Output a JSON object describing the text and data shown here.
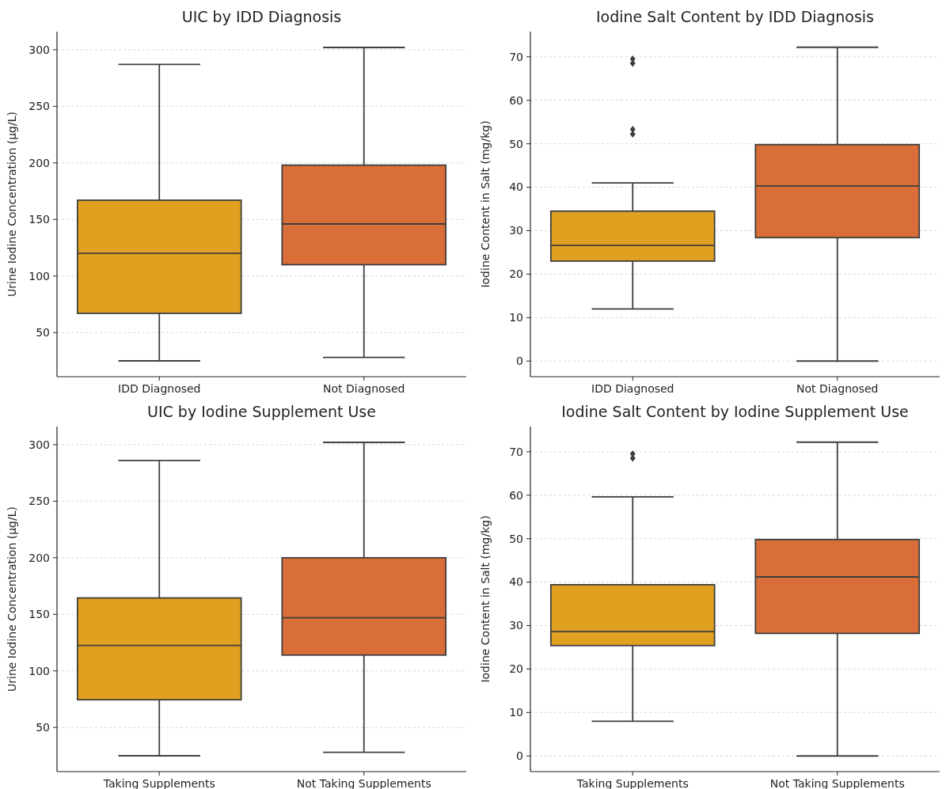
{
  "chart_data": [
    {
      "type": "box",
      "title": "UIC by IDD Diagnosis",
      "ylabel": "Urine Iodine Concentration (µg/L)",
      "categories": [
        "IDD Diagnosed",
        "Not Diagnosed"
      ],
      "colors": [
        "#dfa11f",
        "#da6e39"
      ],
      "ylim": [
        11,
        316
      ],
      "yticks": [
        50,
        100,
        150,
        200,
        250,
        300
      ],
      "grid": "y",
      "boxes": [
        {
          "low": 25,
          "q1": 67,
          "median": 120,
          "q3": 167,
          "high": 287
        },
        {
          "low": 28,
          "q1": 110,
          "median": 146,
          "q3": 198,
          "high": 302
        }
      ]
    },
    {
      "type": "box",
      "title": "Iodine Salt Content by IDD Diagnosis",
      "ylabel": "Iodine Content in Salt (mg/kg)",
      "categories": [
        "IDD Diagnosed",
        "Not Diagnosed"
      ],
      "colors": [
        "#dfa11f",
        "#da6e39"
      ],
      "ylim": [
        -3.6,
        75.8
      ],
      "yticks": [
        0,
        10,
        20,
        30,
        40,
        50,
        60,
        70
      ],
      "grid": "y",
      "boxes": [
        {
          "low": 12,
          "q1": 23,
          "median": 26.6,
          "q3": 34.5,
          "high": 41,
          "outliers": [
            52.2,
            53.3,
            68.5,
            69.5
          ]
        },
        {
          "low": 0,
          "q1": 28.4,
          "median": 40.3,
          "q3": 49.8,
          "high": 72.2
        }
      ]
    },
    {
      "type": "box",
      "title": "UIC by Iodine Supplement Use",
      "ylabel": "Urine Iodine Concentration (µg/L)",
      "categories": [
        "Taking Supplements",
        "Not Taking Supplements"
      ],
      "colors": [
        "#dfa11f",
        "#da6e39"
      ],
      "ylim": [
        11,
        316
      ],
      "yticks": [
        50,
        100,
        150,
        200,
        250,
        300
      ],
      "grid": "y",
      "boxes": [
        {
          "low": 25,
          "q1": 74.5,
          "median": 122.5,
          "q3": 164.5,
          "high": 286
        },
        {
          "low": 28,
          "q1": 114,
          "median": 147,
          "q3": 200,
          "high": 302
        }
      ]
    },
    {
      "type": "box",
      "title": "Iodine Salt Content by Iodine Supplement Use",
      "ylabel": "Iodine Content in Salt (mg/kg)",
      "categories": [
        "Taking Supplements",
        "Not Taking Supplements"
      ],
      "colors": [
        "#dfa11f",
        "#da6e39"
      ],
      "ylim": [
        -3.6,
        75.8
      ],
      "yticks": [
        0,
        10,
        20,
        30,
        40,
        50,
        60,
        70
      ],
      "grid": "y",
      "boxes": [
        {
          "low": 8,
          "q1": 25.4,
          "median": 28.6,
          "q3": 39.4,
          "high": 59.6,
          "outliers": [
            68.5,
            69.5
          ]
        },
        {
          "low": 0,
          "q1": 28.2,
          "median": 41.2,
          "q3": 49.8,
          "high": 72.2
        }
      ]
    }
  ]
}
